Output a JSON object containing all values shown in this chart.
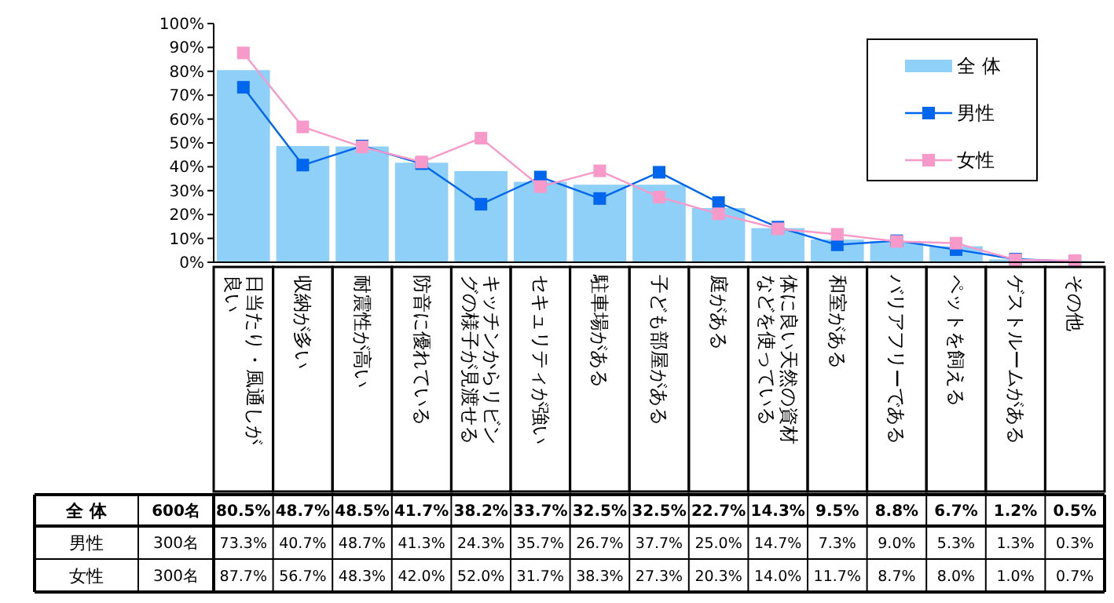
{
  "chart_data": {
    "type": "bar",
    "categories": [
      "日当たり・風通しが良い",
      "収納が多い",
      "耐震性が高い",
      "防音に優れている",
      "キッチンからリビングの様子が見渡せる",
      "セキュリティが強い",
      "駐車場がある",
      "子ども部屋がある",
      "庭がある",
      "体に良い天然の資材などを使っている",
      "和室がある",
      "バリアフリーである",
      "ペットを飼える",
      "ゲストルームがある",
      "その他"
    ],
    "series": [
      {
        "name": "全 体",
        "color": "#8fd0f8",
        "values": [
          80.5,
          48.7,
          48.5,
          41.7,
          38.2,
          33.7,
          32.5,
          32.5,
          22.7,
          14.3,
          9.5,
          8.8,
          6.7,
          1.2,
          0.5
        ],
        "value_labels": [
          "80.5%",
          "48.7%",
          "48.5%",
          "41.7%",
          "38.2%",
          "33.7%",
          "32.5%",
          "32.5%",
          "22.7%",
          "14.3%",
          "9.5%",
          "8.8%",
          "6.7%",
          "1.2%",
          "0.5%"
        ]
      },
      {
        "name": "男性",
        "type": "line",
        "color": "#0066ee",
        "values": [
          73.3,
          40.7,
          48.7,
          41.3,
          24.3,
          35.7,
          26.7,
          37.7,
          25.0,
          14.7,
          7.3,
          9.0,
          5.3,
          1.3,
          0.3
        ],
        "value_labels": [
          "73.3%",
          "40.7%",
          "48.7%",
          "41.3%",
          "24.3%",
          "35.7%",
          "26.7%",
          "37.7%",
          "25.0%",
          "14.7%",
          "7.3%",
          "9.0%",
          "5.3%",
          "1.3%",
          "0.3%"
        ]
      },
      {
        "name": "女性",
        "type": "line",
        "color": "#f799c9",
        "values": [
          87.7,
          56.7,
          48.3,
          42.0,
          52.0,
          31.7,
          38.3,
          27.3,
          20.3,
          14.0,
          11.7,
          8.7,
          8.0,
          1.0,
          0.7
        ],
        "value_labels": [
          "87.7%",
          "56.7%",
          "48.3%",
          "42.0%",
          "52.0%",
          "31.7%",
          "38.3%",
          "27.3%",
          "20.3%",
          "14.0%",
          "11.7%",
          "8.7%",
          "8.0%",
          "1.0%",
          "0.7%"
        ]
      }
    ],
    "ylim": [
      0,
      100
    ],
    "yticks": [
      {
        "value": 0,
        "label": "0%"
      },
      {
        "value": 10,
        "label": "10%"
      },
      {
        "value": 20,
        "label": "20%"
      },
      {
        "value": 30,
        "label": "30%"
      },
      {
        "value": 40,
        "label": "40%"
      },
      {
        "value": 50,
        "label": "50%"
      },
      {
        "value": 60,
        "label": "60%"
      },
      {
        "value": 70,
        "label": "70%"
      },
      {
        "value": 80,
        "label": "80%"
      },
      {
        "value": 90,
        "label": "90%"
      },
      {
        "value": 100,
        "label": "100%"
      }
    ],
    "data_labels": true,
    "legend": "top right",
    "marker": "square",
    "line_style": "solid",
    "annotations": [
      "600名",
      "300名",
      "300名"
    ]
  }
}
